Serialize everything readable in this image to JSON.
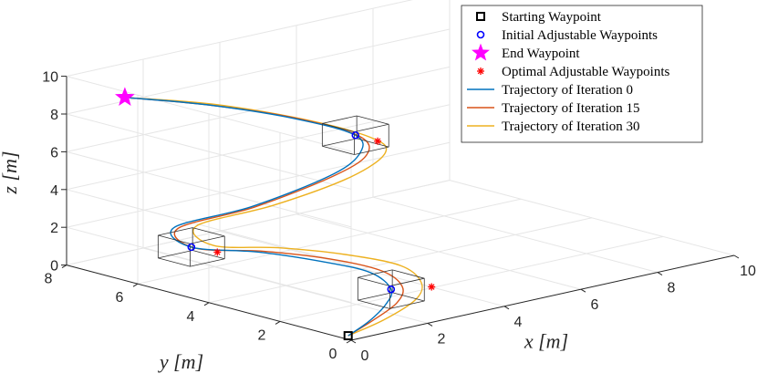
{
  "chart_data": {
    "type": "line3d",
    "xlabel": "x [m]",
    "ylabel": "y [m]",
    "zlabel": "z [m]",
    "xlim": [
      0,
      10
    ],
    "ylim": [
      0,
      8
    ],
    "zlim": [
      0,
      10
    ],
    "xticks": [
      "0",
      "2",
      "4",
      "6",
      "8",
      "10"
    ],
    "yticks": [
      "0",
      "2",
      "4",
      "6",
      "8"
    ],
    "zticks": [
      "0",
      "2",
      "4",
      "6",
      "8",
      "10"
    ],
    "legend": [
      {
        "label": "Starting Waypoint",
        "marker": "square",
        "color": "#000000"
      },
      {
        "label": "Initial Adjustable Waypoints",
        "marker": "circle",
        "color": "#0000ff"
      },
      {
        "label": "End Waypoint",
        "marker": "star",
        "color": "#ff00ff"
      },
      {
        "label": "Optimal Adjustable Waypoints",
        "marker": "asterisk",
        "color": "#ff0000"
      },
      {
        "label": "Trajectory of Iteration 0",
        "marker": "line",
        "color": "#0072bd"
      },
      {
        "label": "Trajectory of Iteration 15",
        "marker": "line",
        "color": "#d95319"
      },
      {
        "label": "Trajectory of Iteration 30",
        "marker": "line",
        "color": "#edb120"
      }
    ],
    "starting_waypoint": {
      "x": 0.2,
      "y": 0.3,
      "z": 0
    },
    "end_waypoint": {
      "x": 0.5,
      "y": 6.9,
      "z": 9.2
    },
    "initial_adjustable_waypoints": [
      {
        "x": 2.9,
        "y": 2.0,
        "z": 0.4
      },
      {
        "x": 0.1,
        "y": 4.6,
        "z": 2.6
      },
      {
        "x": 5.5,
        "y": 5.8,
        "z": 5.5
      }
    ],
    "optimal_adjustable_waypoints": [
      {
        "x": 3.4,
        "y": 1.4,
        "z": 0.6
      },
      {
        "x": 0.5,
        "y": 4.3,
        "z": 2.3
      },
      {
        "x": 5.8,
        "y": 5.5,
        "z": 5.2
      }
    ],
    "series": [
      {
        "name": "Trajectory of Iteration 0",
        "color": "#0072bd",
        "points": [
          [
            0.2,
            0.3,
            0.0
          ],
          [
            1.2,
            0.8,
            0.05
          ],
          [
            2.2,
            1.4,
            0.2
          ],
          [
            2.9,
            2.0,
            0.4
          ],
          [
            3.1,
            2.8,
            0.8
          ],
          [
            2.5,
            3.5,
            1.3
          ],
          [
            1.4,
            4.1,
            2.0
          ],
          [
            0.1,
            4.6,
            2.6
          ],
          [
            0.3,
            5.3,
            3.2
          ],
          [
            2.4,
            5.4,
            3.3
          ],
          [
            4.5,
            5.5,
            3.9
          ],
          [
            5.4,
            5.6,
            4.6
          ],
          [
            5.5,
            5.8,
            5.5
          ],
          [
            4.2,
            6.2,
            6.8
          ],
          [
            2.4,
            6.6,
            8.1
          ],
          [
            0.5,
            6.9,
            9.2
          ]
        ]
      },
      {
        "name": "Trajectory of Iteration 15",
        "color": "#d95319",
        "points": [
          [
            0.2,
            0.3,
            0.0
          ],
          [
            1.3,
            0.8,
            0.05
          ],
          [
            2.4,
            1.3,
            0.25
          ],
          [
            3.1,
            1.9,
            0.5
          ],
          [
            3.3,
            2.7,
            0.85
          ],
          [
            2.7,
            3.5,
            1.35
          ],
          [
            1.5,
            4.1,
            2.0
          ],
          [
            0.2,
            4.6,
            2.5
          ],
          [
            0.4,
            5.3,
            3.1
          ],
          [
            2.5,
            5.4,
            3.25
          ],
          [
            4.6,
            5.5,
            3.85
          ],
          [
            5.6,
            5.6,
            4.5
          ],
          [
            5.6,
            5.8,
            5.4
          ],
          [
            4.3,
            6.2,
            6.75
          ],
          [
            2.4,
            6.6,
            8.1
          ],
          [
            0.5,
            6.9,
            9.2
          ]
        ]
      },
      {
        "name": "Trajectory of Iteration 30",
        "color": "#edb120",
        "points": [
          [
            0.2,
            0.3,
            0.0
          ],
          [
            1.5,
            0.7,
            0.05
          ],
          [
            2.8,
            1.2,
            0.3
          ],
          [
            3.5,
            1.8,
            0.6
          ],
          [
            3.7,
            2.6,
            1.0
          ],
          [
            3.0,
            3.4,
            1.5
          ],
          [
            1.8,
            4.0,
            2.1
          ],
          [
            0.5,
            4.4,
            2.6
          ],
          [
            0.7,
            5.1,
            3.2
          ],
          [
            2.8,
            5.2,
            3.3
          ],
          [
            4.9,
            5.3,
            3.8
          ],
          [
            6.0,
            5.5,
            4.5
          ],
          [
            5.8,
            5.7,
            5.3
          ],
          [
            4.4,
            6.1,
            6.7
          ],
          [
            2.5,
            6.6,
            8.1
          ],
          [
            0.5,
            6.9,
            9.2
          ]
        ]
      }
    ]
  }
}
